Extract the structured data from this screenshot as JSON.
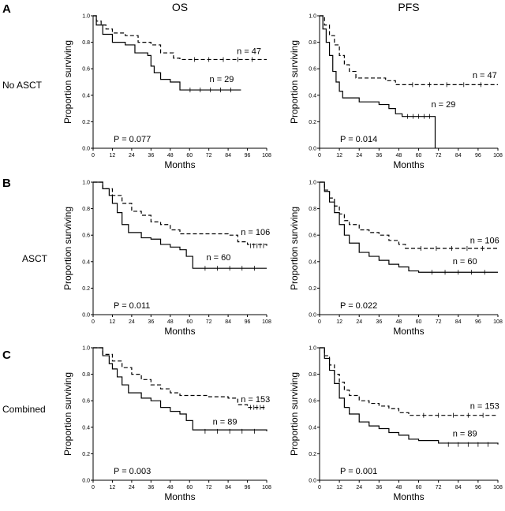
{
  "column_titles": [
    "OS",
    "PFS"
  ],
  "panel_letters": [
    "A",
    "B",
    "C"
  ],
  "row_labels": [
    "No ASCT",
    "ASCT",
    "Combined"
  ],
  "chart_data": [
    {
      "type": "line",
      "panel": "A",
      "row": "No ASCT",
      "col": "OS",
      "title": "OS",
      "xlabel": "Months",
      "ylabel": "Proportion surviving",
      "xlim": [
        0,
        108
      ],
      "ylim": [
        0,
        1.0
      ],
      "xticks": [
        0,
        12,
        24,
        36,
        48,
        60,
        72,
        84,
        96,
        108
      ],
      "yticks": [
        0.0,
        0.2,
        0.4,
        0.6,
        0.8,
        1.0
      ],
      "p_value": "P = 0.077",
      "series": [
        {
          "name": "n = 47",
          "style": "dashed",
          "points": [
            [
              0,
              1.0
            ],
            [
              2,
              0.96
            ],
            [
              5,
              0.93
            ],
            [
              8,
              0.9
            ],
            [
              12,
              0.87
            ],
            [
              20,
              0.85
            ],
            [
              28,
              0.8
            ],
            [
              36,
              0.78
            ],
            [
              42,
              0.72
            ],
            [
              50,
              0.68
            ],
            [
              54,
              0.67
            ],
            [
              108,
              0.67
            ]
          ]
        },
        {
          "name": "n = 29",
          "style": "solid",
          "points": [
            [
              0,
              1.0
            ],
            [
              2,
              0.93
            ],
            [
              6,
              0.86
            ],
            [
              12,
              0.8
            ],
            [
              20,
              0.78
            ],
            [
              26,
              0.72
            ],
            [
              34,
              0.7
            ],
            [
              36,
              0.62
            ],
            [
              38,
              0.57
            ],
            [
              42,
              0.52
            ],
            [
              48,
              0.5
            ],
            [
              54,
              0.44
            ],
            [
              92,
              0.44
            ]
          ]
        }
      ]
    },
    {
      "type": "line",
      "panel": "A",
      "row": "No ASCT",
      "col": "PFS",
      "title": "PFS",
      "xlabel": "Months",
      "ylabel": "Proportion surviving",
      "xlim": [
        0,
        108
      ],
      "ylim": [
        0,
        1.0
      ],
      "xticks": [
        0,
        12,
        24,
        36,
        48,
        60,
        72,
        84,
        96,
        108
      ],
      "yticks": [
        0.0,
        0.2,
        0.4,
        0.6,
        0.8,
        1.0
      ],
      "p_value": "P = 0.014",
      "series": [
        {
          "name": "n = 47",
          "style": "dashed",
          "points": [
            [
              0,
              1.0
            ],
            [
              3,
              0.93
            ],
            [
              6,
              0.85
            ],
            [
              9,
              0.78
            ],
            [
              12,
              0.7
            ],
            [
              15,
              0.63
            ],
            [
              18,
              0.58
            ],
            [
              22,
              0.53
            ],
            [
              30,
              0.53
            ],
            [
              40,
              0.51
            ],
            [
              46,
              0.48
            ],
            [
              108,
              0.48
            ]
          ]
        },
        {
          "name": "n = 29",
          "style": "solid",
          "points": [
            [
              0,
              1.0
            ],
            [
              2,
              0.9
            ],
            [
              4,
              0.8
            ],
            [
              6,
              0.7
            ],
            [
              8,
              0.58
            ],
            [
              10,
              0.5
            ],
            [
              12,
              0.43
            ],
            [
              14,
              0.38
            ],
            [
              20,
              0.38
            ],
            [
              24,
              0.35
            ],
            [
              36,
              0.33
            ],
            [
              42,
              0.3
            ],
            [
              46,
              0.26
            ],
            [
              50,
              0.24
            ],
            [
              70,
              0.24
            ],
            [
              70,
              0.0
            ]
          ]
        }
      ]
    },
    {
      "type": "line",
      "panel": "B",
      "row": "ASCT",
      "col": "OS",
      "title": "",
      "xlabel": "Months",
      "ylabel": "Proportion surviving",
      "xlim": [
        0,
        108
      ],
      "ylim": [
        0,
        1.0
      ],
      "xticks": [
        0,
        12,
        24,
        36,
        48,
        60,
        72,
        84,
        96,
        108
      ],
      "yticks": [
        0.0,
        0.2,
        0.4,
        0.6,
        0.8,
        1.0
      ],
      "p_value": "P = 0.011",
      "series": [
        {
          "name": "n = 106",
          "style": "dashed",
          "points": [
            [
              0,
              1.0
            ],
            [
              6,
              0.95
            ],
            [
              12,
              0.9
            ],
            [
              18,
              0.84
            ],
            [
              24,
              0.78
            ],
            [
              30,
              0.75
            ],
            [
              36,
              0.7
            ],
            [
              42,
              0.68
            ],
            [
              48,
              0.64
            ],
            [
              54,
              0.61
            ],
            [
              72,
              0.61
            ],
            [
              84,
              0.6
            ],
            [
              90,
              0.55
            ],
            [
              96,
              0.53
            ],
            [
              108,
              0.52
            ]
          ]
        },
        {
          "name": "n = 60",
          "style": "solid",
          "points": [
            [
              0,
              1.0
            ],
            [
              6,
              0.95
            ],
            [
              10,
              0.9
            ],
            [
              12,
              0.84
            ],
            [
              15,
              0.77
            ],
            [
              18,
              0.68
            ],
            [
              22,
              0.62
            ],
            [
              30,
              0.58
            ],
            [
              36,
              0.57
            ],
            [
              42,
              0.53
            ],
            [
              48,
              0.51
            ],
            [
              54,
              0.49
            ],
            [
              58,
              0.44
            ],
            [
              62,
              0.35
            ],
            [
              108,
              0.35
            ]
          ]
        }
      ]
    },
    {
      "type": "line",
      "panel": "B",
      "row": "ASCT",
      "col": "PFS",
      "title": "",
      "xlabel": "Months",
      "ylabel": "Proportion surviving",
      "xlim": [
        0,
        108
      ],
      "ylim": [
        0,
        1.0
      ],
      "xticks": [
        0,
        12,
        24,
        36,
        48,
        60,
        72,
        84,
        96,
        108
      ],
      "yticks": [
        0.0,
        0.2,
        0.4,
        0.6,
        0.8,
        1.0
      ],
      "p_value": "P = 0.022",
      "series": [
        {
          "name": "n = 106",
          "style": "dashed",
          "points": [
            [
              0,
              1.0
            ],
            [
              3,
              0.94
            ],
            [
              6,
              0.88
            ],
            [
              9,
              0.82
            ],
            [
              12,
              0.76
            ],
            [
              15,
              0.71
            ],
            [
              18,
              0.68
            ],
            [
              24,
              0.64
            ],
            [
              30,
              0.62
            ],
            [
              36,
              0.6
            ],
            [
              42,
              0.56
            ],
            [
              48,
              0.53
            ],
            [
              52,
              0.5
            ],
            [
              108,
              0.5
            ]
          ]
        },
        {
          "name": "n = 60",
          "style": "solid",
          "points": [
            [
              0,
              1.0
            ],
            [
              3,
              0.93
            ],
            [
              6,
              0.85
            ],
            [
              9,
              0.77
            ],
            [
              12,
              0.68
            ],
            [
              15,
              0.6
            ],
            [
              18,
              0.54
            ],
            [
              24,
              0.47
            ],
            [
              30,
              0.44
            ],
            [
              36,
              0.41
            ],
            [
              42,
              0.38
            ],
            [
              48,
              0.36
            ],
            [
              54,
              0.33
            ],
            [
              60,
              0.32
            ],
            [
              108,
              0.32
            ]
          ]
        }
      ]
    },
    {
      "type": "line",
      "panel": "C",
      "row": "Combined",
      "col": "OS",
      "title": "",
      "xlabel": "Months",
      "ylabel": "Proportion surviving",
      "xlim": [
        0,
        108
      ],
      "ylim": [
        0,
        1.0
      ],
      "xticks": [
        0,
        12,
        24,
        36,
        48,
        60,
        72,
        84,
        96,
        108
      ],
      "yticks": [
        0.0,
        0.2,
        0.4,
        0.6,
        0.8,
        1.0
      ],
      "p_value": "P = 0.003",
      "series": [
        {
          "name": "n = 153",
          "style": "dashed",
          "points": [
            [
              0,
              1.0
            ],
            [
              6,
              0.95
            ],
            [
              12,
              0.9
            ],
            [
              18,
              0.85
            ],
            [
              24,
              0.8
            ],
            [
              30,
              0.76
            ],
            [
              36,
              0.72
            ],
            [
              42,
              0.69
            ],
            [
              48,
              0.66
            ],
            [
              54,
              0.64
            ],
            [
              72,
              0.63
            ],
            [
              84,
              0.62
            ],
            [
              90,
              0.57
            ],
            [
              96,
              0.55
            ],
            [
              108,
              0.55
            ]
          ]
        },
        {
          "name": "n = 89",
          "style": "solid",
          "points": [
            [
              0,
              1.0
            ],
            [
              6,
              0.94
            ],
            [
              10,
              0.88
            ],
            [
              12,
              0.84
            ],
            [
              15,
              0.78
            ],
            [
              18,
              0.72
            ],
            [
              22,
              0.66
            ],
            [
              30,
              0.62
            ],
            [
              36,
              0.6
            ],
            [
              42,
              0.55
            ],
            [
              48,
              0.52
            ],
            [
              54,
              0.5
            ],
            [
              58,
              0.45
            ],
            [
              62,
              0.38
            ],
            [
              108,
              0.37
            ]
          ]
        }
      ]
    },
    {
      "type": "line",
      "panel": "C",
      "row": "Combined",
      "col": "PFS",
      "title": "",
      "xlabel": "Months",
      "ylabel": "Proportion surviving",
      "xlim": [
        0,
        108
      ],
      "ylim": [
        0,
        1.0
      ],
      "xticks": [
        0,
        12,
        24,
        36,
        48,
        60,
        72,
        84,
        96,
        108
      ],
      "yticks": [
        0.0,
        0.2,
        0.4,
        0.6,
        0.8,
        1.0
      ],
      "p_value": "P = 0.001",
      "series": [
        {
          "name": "n = 153",
          "style": "dashed",
          "points": [
            [
              0,
              1.0
            ],
            [
              3,
              0.94
            ],
            [
              6,
              0.87
            ],
            [
              9,
              0.8
            ],
            [
              12,
              0.74
            ],
            [
              15,
              0.68
            ],
            [
              18,
              0.64
            ],
            [
              24,
              0.6
            ],
            [
              30,
              0.58
            ],
            [
              36,
              0.56
            ],
            [
              42,
              0.54
            ],
            [
              48,
              0.51
            ],
            [
              54,
              0.49
            ],
            [
              108,
              0.49
            ]
          ]
        },
        {
          "name": "n = 89",
          "style": "solid",
          "points": [
            [
              0,
              1.0
            ],
            [
              3,
              0.92
            ],
            [
              6,
              0.83
            ],
            [
              9,
              0.73
            ],
            [
              12,
              0.62
            ],
            [
              15,
              0.55
            ],
            [
              18,
              0.5
            ],
            [
              24,
              0.44
            ],
            [
              30,
              0.41
            ],
            [
              36,
              0.39
            ],
            [
              42,
              0.36
            ],
            [
              48,
              0.34
            ],
            [
              54,
              0.31
            ],
            [
              60,
              0.3
            ],
            [
              72,
              0.28
            ],
            [
              108,
              0.27
            ]
          ]
        }
      ]
    }
  ]
}
